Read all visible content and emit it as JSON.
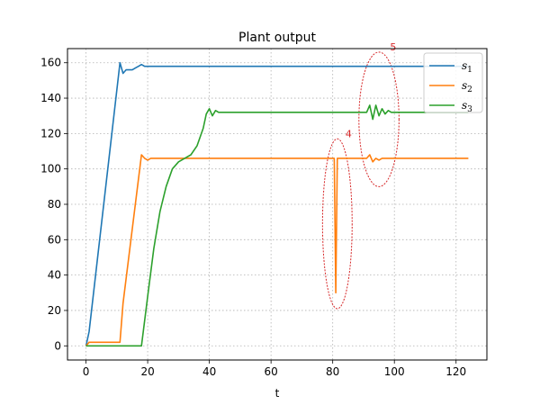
{
  "chart_data": {
    "type": "line",
    "title": "Plant output",
    "xlabel": "t",
    "ylabel": "",
    "xlim": [
      -6,
      130
    ],
    "ylim": [
      -8,
      168
    ],
    "xticks": [
      0,
      20,
      40,
      60,
      80,
      100,
      120
    ],
    "yticks": [
      0,
      20,
      40,
      60,
      80,
      100,
      120,
      140,
      160
    ],
    "grid": true,
    "legend_position": "top-right",
    "series": [
      {
        "name": "s",
        "subscript": "1",
        "color": "#1f77b4",
        "x": [
          0,
          1,
          11,
          12,
          13,
          15,
          16,
          17,
          18,
          19,
          20,
          21,
          124
        ],
        "y": [
          0,
          8,
          160,
          154,
          156,
          156,
          157,
          158,
          159,
          158,
          158,
          158,
          158
        ]
      },
      {
        "name": "s",
        "subscript": "2",
        "color": "#ff7f0e",
        "x": [
          0,
          1,
          11,
          12,
          18,
          19,
          20,
          21,
          80,
          80.5,
          81,
          81.5,
          82,
          91,
          92,
          93,
          94,
          95,
          96,
          124
        ],
        "y": [
          0,
          2,
          2,
          24,
          108,
          106,
          105,
          106,
          106,
          106,
          30,
          106,
          106,
          106,
          108,
          104,
          106,
          105,
          106,
          106
        ]
      },
      {
        "name": "s",
        "subscript": "3",
        "color": "#2ca02c",
        "x": [
          0,
          18,
          20,
          22,
          24,
          26,
          28,
          30,
          32,
          34,
          36,
          38,
          39,
          40,
          41,
          42,
          43,
          91,
          92,
          93,
          94,
          95,
          96,
          97,
          98,
          99,
          124
        ],
        "y": [
          0,
          0,
          28,
          55,
          76,
          90,
          100,
          104,
          106,
          108,
          113,
          123,
          131,
          134,
          130,
          133,
          132,
          132,
          136,
          128,
          136,
          130,
          134,
          131,
          133,
          132,
          132
        ]
      }
    ],
    "annotations": [
      {
        "label": "4",
        "color": "#d62728",
        "ellipse_center": [
          81.5,
          69
        ],
        "ellipse_radii": [
          4.8,
          48
        ]
      },
      {
        "label": "5",
        "color": "#d62728",
        "ellipse_center": [
          95,
          128
        ],
        "ellipse_radii": [
          6.5,
          38
        ]
      }
    ]
  }
}
